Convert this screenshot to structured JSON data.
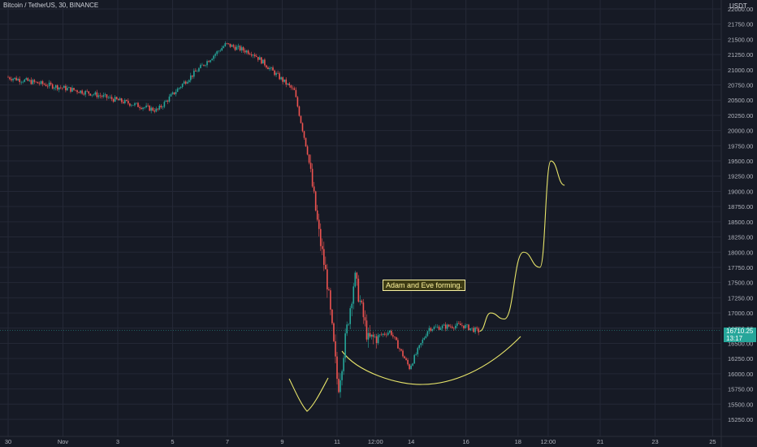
{
  "header": {
    "symbol_title": "Bitcoin / TetherUS, 30, BINANCE",
    "currency": "USDT"
  },
  "last_price": {
    "value": "16710.25",
    "countdown": "13:17"
  },
  "annotation": {
    "text": "Adam and Eve forming."
  },
  "colors": {
    "background": "#161a25",
    "grid": "#242836",
    "up_candle": "#26a69a",
    "down_candle": "#ef5350",
    "drawing": "#e8e56a",
    "price_tag": "#26a69a"
  },
  "chart_data": {
    "type": "candlestick",
    "title": "Bitcoin / TetherUS, 30, BINANCE",
    "ylabel": "USDT",
    "ylim": [
      15150,
      22100
    ],
    "grid": true,
    "y_ticks": [
      "22000.00",
      "21750.00",
      "21500.00",
      "21250.00",
      "21000.00",
      "20750.00",
      "20500.00",
      "20250.00",
      "20000.00",
      "19750.00",
      "19500.00",
      "19250.00",
      "19000.00",
      "18750.00",
      "18500.00",
      "18250.00",
      "18000.00",
      "17750.00",
      "17500.00",
      "17250.00",
      "17000.00",
      "16750.00",
      "16500.00",
      "16250.00",
      "16000.00",
      "15750.00",
      "15500.00",
      "15250.00"
    ],
    "x_ticks": [
      "30",
      "Nov",
      "3",
      "5",
      "7",
      "9",
      "11",
      "12:00",
      "14",
      "16",
      "18",
      "12:00",
      "21",
      "23",
      "25"
    ],
    "price_path": [
      {
        "t": 0,
        "price": 20880
      },
      {
        "t": 3,
        "price": 20620
      },
      {
        "t": 5.5,
        "price": 20330
      },
      {
        "t": 6.5,
        "price": 20800
      },
      {
        "t": 8,
        "price": 21420
      },
      {
        "t": 9,
        "price": 21270
      },
      {
        "t": 10.5,
        "price": 20650
      },
      {
        "t": 11,
        "price": 19600
      },
      {
        "t": 11.4,
        "price": 18300
      },
      {
        "t": 11.7,
        "price": 17500
      },
      {
        "t": 12.1,
        "price": 15750
      },
      {
        "t": 12.7,
        "price": 17600
      },
      {
        "t": 13.2,
        "price": 16550
      },
      {
        "t": 14,
        "price": 16700
      },
      {
        "t": 14.7,
        "price": 16100
      },
      {
        "t": 15.4,
        "price": 16750
      },
      {
        "t": 16.6,
        "price": 16800
      },
      {
        "t": 17.2,
        "price": 16700
      }
    ],
    "projection": [
      {
        "t": 17.2,
        "price": 16700
      },
      {
        "t": 17.6,
        "price": 17000
      },
      {
        "t": 18.1,
        "price": 16900
      },
      {
        "t": 18.8,
        "price": 18000
      },
      {
        "t": 19.4,
        "price": 17750
      },
      {
        "t": 19.8,
        "price": 19500
      },
      {
        "t": 20.3,
        "price": 19100
      }
    ],
    "last_price": 16710.25
  }
}
